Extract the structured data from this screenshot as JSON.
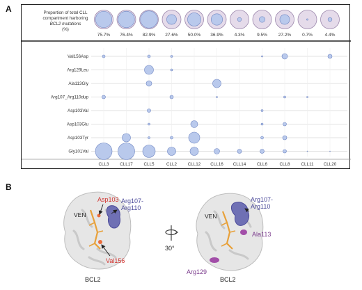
{
  "panel_a_label": "A",
  "panel_b_label": "B",
  "proportion_label_lines": [
    "Proportion of total CLL",
    "compartment harboring",
    "BCL2 mutations",
    "(%)"
  ],
  "chart_data": {
    "type": "bubble",
    "patients": [
      "CLL3",
      "CLL17",
      "CLL5",
      "CLL2",
      "CLL12",
      "CLL16",
      "CLL14",
      "CLL6",
      "CLL8",
      "CLL11",
      "CLL20"
    ],
    "proportions": [
      "75.7%",
      "76.4%",
      "82.9%",
      "27.6%",
      "50.0%",
      "36.9%",
      "4.3%",
      "9.5%",
      "27.2%",
      "0.7%",
      "4.4%"
    ],
    "proportion_values": [
      75.7,
      76.4,
      82.9,
      27.6,
      50.0,
      36.9,
      4.3,
      9.5,
      27.2,
      0.7,
      4.4
    ],
    "mutations": [
      "Val156Asp",
      "Arg129Leu",
      "Ala113Gly",
      "Arg107_Arg110dup",
      "Asp103Val",
      "Asp103Glu",
      "Asp103Tyr",
      "Gly101Val"
    ],
    "bubbles": [
      {
        "mutation": "Val156Asp",
        "patient": "CLL3",
        "size": 2
      },
      {
        "mutation": "Val156Asp",
        "patient": "CLL5",
        "size": 2
      },
      {
        "mutation": "Val156Asp",
        "patient": "CLL2",
        "size": 1.5
      },
      {
        "mutation": "Val156Asp",
        "patient": "CLL6",
        "size": 1
      },
      {
        "mutation": "Val156Asp",
        "patient": "CLL8",
        "size": 4
      },
      {
        "mutation": "Val156Asp",
        "patient": "CLL20",
        "size": 3
      },
      {
        "mutation": "Arg129Leu",
        "patient": "CLL5",
        "size": 6.5
      },
      {
        "mutation": "Arg129Leu",
        "patient": "CLL2",
        "size": 1.5
      },
      {
        "mutation": "Ala113Gly",
        "patient": "CLL5",
        "size": 4
      },
      {
        "mutation": "Ala113Gly",
        "patient": "CLL16",
        "size": 6
      },
      {
        "mutation": "Arg107_Arg110dup",
        "patient": "CLL3",
        "size": 2.5
      },
      {
        "mutation": "Arg107_Arg110dup",
        "patient": "CLL2",
        "size": 2.5
      },
      {
        "mutation": "Arg107_Arg110dup",
        "patient": "CLL16",
        "size": 1
      },
      {
        "mutation": "Arg107_Arg110dup",
        "patient": "CLL8",
        "size": 1.5
      },
      {
        "mutation": "Arg107_Arg110dup",
        "patient": "CLL11",
        "size": 1
      },
      {
        "mutation": "Asp103Val",
        "patient": "CLL5",
        "size": 2.5
      },
      {
        "mutation": "Asp103Val",
        "patient": "CLL6",
        "size": 1.5
      },
      {
        "mutation": "Asp103Glu",
        "patient": "CLL5",
        "size": 1.5
      },
      {
        "mutation": "Asp103Glu",
        "patient": "CLL12",
        "size": 5
      },
      {
        "mutation": "Asp103Glu",
        "patient": "CLL6",
        "size": 1.5
      },
      {
        "mutation": "Asp103Glu",
        "patient": "CLL8",
        "size": 2.5
      },
      {
        "mutation": "Asp103Tyr",
        "patient": "CLL17",
        "size": 6
      },
      {
        "mutation": "Asp103Tyr",
        "patient": "CLL5",
        "size": 1.5
      },
      {
        "mutation": "Asp103Tyr",
        "patient": "CLL2",
        "size": 2
      },
      {
        "mutation": "Asp103Tyr",
        "patient": "CLL12",
        "size": 8
      },
      {
        "mutation": "Asp103Tyr",
        "patient": "CLL6",
        "size": 2
      },
      {
        "mutation": "Asp103Tyr",
        "patient": "CLL8",
        "size": 3
      },
      {
        "mutation": "Gly101Val",
        "patient": "CLL3",
        "size": 12
      },
      {
        "mutation": "Gly101Val",
        "patient": "CLL17",
        "size": 12
      },
      {
        "mutation": "Gly101Val",
        "patient": "CLL5",
        "size": 9
      },
      {
        "mutation": "Gly101Val",
        "patient": "CLL2",
        "size": 6
      },
      {
        "mutation": "Gly101Val",
        "patient": "CLL12",
        "size": 6
      },
      {
        "mutation": "Gly101Val",
        "patient": "CLL16",
        "size": 4
      },
      {
        "mutation": "Gly101Val",
        "patient": "CLL14",
        "size": 3
      },
      {
        "mutation": "Gly101Val",
        "patient": "CLL6",
        "size": 3
      },
      {
        "mutation": "Gly101Val",
        "patient": "CLL8",
        "size": 2.5
      },
      {
        "mutation": "Gly101Val",
        "patient": "CLL11",
        "size": 0.5
      },
      {
        "mutation": "Gly101Val",
        "patient": "CLL20",
        "size": 0.5
      }
    ],
    "colors": {
      "bubble_fill": "#b9c9ec",
      "bubble_stroke": "#6f86c2",
      "outer_fill": "#e5dbea",
      "outer_stroke": "#9c88ad"
    }
  },
  "structure": {
    "left": {
      "protein_label": "BCL2",
      "ven_label": "VEN",
      "asp103_label": "Asp103",
      "val156_label": "Val156",
      "arg107_label_lines": [
        "Arg107-",
        "Arg110"
      ]
    },
    "right": {
      "protein_label": "BCL2",
      "ven_label": "VEN",
      "arg107_label_lines": [
        "Arg107-",
        "Arg110"
      ],
      "ala113_label": "Ala113",
      "arg129_label": "Arg129"
    },
    "rotation_label": "30°",
    "colors": {
      "red": "#d1322e",
      "blue": "#4b4a9a",
      "purple": "#7a3a8c",
      "surface": "#e6e6e6",
      "ligand": "#e8a13a",
      "dark": "#222222"
    }
  }
}
